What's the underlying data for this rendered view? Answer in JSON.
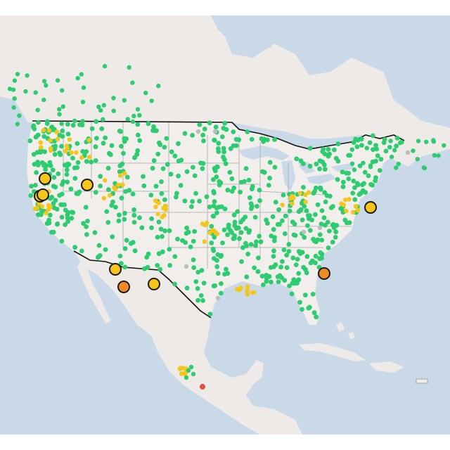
{
  "map": {
    "colors": {
      "water": "#c9d9e8",
      "land": "#eeeae7",
      "us_land": "#f1eeeb",
      "border": "#111111",
      "state_line": "#aaaaaa"
    },
    "markers": {
      "legend": [
        {
          "category": "good",
          "icon": "green-dot-marker",
          "color": "#2ecc71"
        },
        {
          "category": "moderate",
          "icon": "yellow-dot-marker",
          "color": "#f5c518"
        },
        {
          "category": "unhealthy-sensitive",
          "icon": "orange-dot-marker",
          "color": "#f08a24"
        },
        {
          "category": "unhealthy",
          "icon": "red-dot-marker",
          "color": "#e74c3c"
        },
        {
          "category": "no-data",
          "icon": "gray-dot-marker",
          "color": "#bdbdbd"
        }
      ],
      "highlight_sites": [
        {
          "label": "",
          "category": "moderate"
        },
        {
          "label": "",
          "category": "moderate"
        },
        {
          "label": "",
          "category": "moderate"
        },
        {
          "label": "",
          "category": "moderate"
        },
        {
          "label": "",
          "category": "moderate"
        },
        {
          "label": "",
          "category": "moderate"
        },
        {
          "label": "",
          "category": "moderate"
        },
        {
          "label": "",
          "category": "unhealthy-sensitive"
        },
        {
          "label": "",
          "category": "unhealthy-sensitive"
        }
      ]
    }
  }
}
